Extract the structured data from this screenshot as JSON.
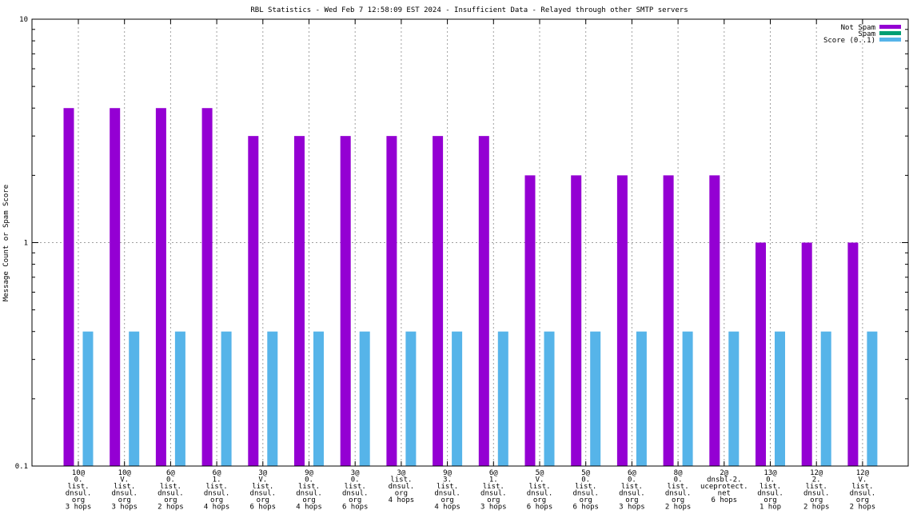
{
  "chart_data": {
    "type": "bar",
    "title": "RBL Statistics - Wed Feb  7 12:58:09 EST 2024 - Insufficient Data - Relayed through other SMTP servers",
    "ylabel": "Message Count or Spam Score",
    "xlabel": "",
    "yscale": "log",
    "ylim": [
      0.1,
      10
    ],
    "yticks": [
      "0.1",
      "1",
      "10"
    ],
    "grid": true,
    "legend_position": "top-right",
    "categories": [
      [
        "10@",
        "0.",
        "list.",
        "dnsul.",
        "org",
        "3 hops"
      ],
      [
        "10@",
        "V.",
        "list.",
        "dnsul.",
        "org",
        "3 hops"
      ],
      [
        "6@",
        "0.",
        "list.",
        "dnsul.",
        "org",
        "2 hops"
      ],
      [
        "6@",
        "1.",
        "list.",
        "dnsul.",
        "org",
        "4 hops"
      ],
      [
        "3@",
        "V.",
        "list.",
        "dnsul.",
        "org",
        "6 hops"
      ],
      [
        "9@",
        "0.",
        "list.",
        "dnsul.",
        "org",
        "4 hops"
      ],
      [
        "3@",
        "0.",
        "list.",
        "dnsul.",
        "org",
        "6 hops"
      ],
      [
        "3@",
        "list.",
        "dnsul.",
        "org",
        "4 hops"
      ],
      [
        "9@",
        "3.",
        "list.",
        "dnsul.",
        "org",
        "4 hops"
      ],
      [
        "6@",
        "1.",
        "list.",
        "dnsul.",
        "org",
        "3 hops"
      ],
      [
        "5@",
        "V.",
        "list.",
        "dnsul.",
        "org",
        "6 hops"
      ],
      [
        "5@",
        "0.",
        "list.",
        "dnsul.",
        "org",
        "6 hops"
      ],
      [
        "6@",
        "0.",
        "list.",
        "dnsul.",
        "org",
        "3 hops"
      ],
      [
        "8@",
        "0.",
        "list.",
        "dnsul.",
        "org",
        "2 hops"
      ],
      [
        "2@",
        "dnsbl-2.",
        "uceprotect.",
        "net",
        "6 hops"
      ],
      [
        "13@",
        "0.",
        "list.",
        "dnsul.",
        "org",
        "1 hop"
      ],
      [
        "12@",
        "2.",
        "list.",
        "dnsul.",
        "org",
        "2 hops"
      ],
      [
        "12@",
        "V.",
        "list.",
        "dnsul.",
        "org",
        "2 hops"
      ]
    ],
    "series": [
      {
        "name": "Not Spam",
        "color": "#9400d3",
        "values": [
          4,
          4,
          4,
          4,
          3,
          3,
          3,
          3,
          3,
          3,
          2,
          2,
          2,
          2,
          2,
          1,
          1,
          1
        ]
      },
      {
        "name": "Spam",
        "color": "#009e73",
        "values": [
          0,
          0,
          0,
          0,
          0,
          0,
          0,
          0,
          0,
          0,
          0,
          0,
          0,
          0,
          0,
          0,
          0,
          0
        ]
      },
      {
        "name": "Score (0..1)",
        "color": "#56b4e9",
        "values": [
          0.4,
          0.4,
          0.4,
          0.4,
          0.4,
          0.4,
          0.4,
          0.4,
          0.4,
          0.4,
          0.4,
          0.4,
          0.4,
          0.4,
          0.4,
          0.4,
          0.4,
          0.4
        ]
      }
    ]
  }
}
